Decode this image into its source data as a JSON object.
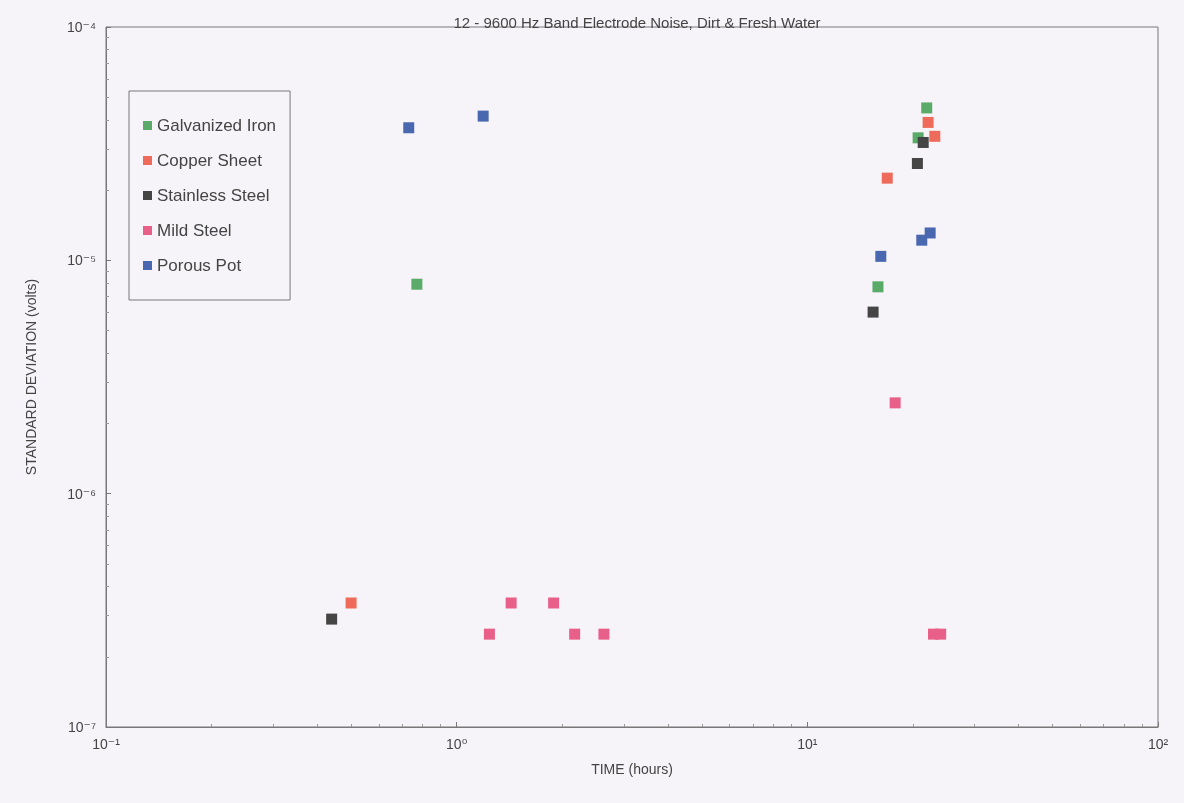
{
  "chart_data": {
    "type": "scatter",
    "title": "12 - 9600 Hz Band Electrode Noise, Dirt & Fresh Water",
    "xlabel": "TIME (hours)",
    "ylabel": "STANDARD DEVIATION (volts)",
    "log": "xy",
    "grid": false,
    "legend": "top left",
    "marker": "square",
    "xlim": [
      0.1,
      100
    ],
    "xticks": [
      {
        "value": 0.1,
        "label": "10⁻¹"
      },
      {
        "value": 1,
        "label": "10⁰"
      },
      {
        "value": 10,
        "label": "10¹"
      },
      {
        "value": 100,
        "label": "10²"
      }
    ],
    "ylim": [
      1e-07,
      0.0001
    ],
    "yticks": [
      {
        "value": 1e-07,
        "label": "10⁻⁷"
      },
      {
        "value": 1e-06,
        "label": "10⁻⁶"
      },
      {
        "value": 1e-05,
        "label": "10⁻⁵"
      },
      {
        "value": 0.0001,
        "label": "10⁻⁴"
      }
    ],
    "series": [
      {
        "name": "Galvanized Iron",
        "color": "#5aaa6a",
        "x": [
          0.77,
          15.9,
          21.9,
          20.7
        ],
        "values": [
          7.9e-06,
          7.7e-06,
          4.5e-05,
          3.35e-05
        ]
      },
      {
        "name": "Copper Sheet",
        "color": "#ee6a5a",
        "x": [
          0.5,
          16.9,
          22.1,
          23.1
        ],
        "values": [
          3.4e-07,
          2.25e-05,
          3.9e-05,
          3.4e-05
        ]
      },
      {
        "name": "Stainless Steel",
        "color": "#454545",
        "x": [
          0.44,
          15.4,
          20.6,
          21.4
        ],
        "values": [
          2.9e-07,
          6e-06,
          2.6e-05,
          3.2e-05
        ]
      },
      {
        "name": "Mild Steel",
        "color": "#e8608a",
        "x": [
          1.24,
          1.43,
          1.89,
          2.17,
          2.63,
          17.8,
          22.9,
          24.0
        ],
        "values": [
          2.5e-07,
          3.4e-07,
          3.4e-07,
          2.5e-07,
          2.5e-07,
          2.45e-06,
          2.5e-07,
          2.5e-07
        ]
      },
      {
        "name": "Porous Pot",
        "color": "#4a68b0",
        "x": [
          0.73,
          1.19,
          16.2,
          21.2,
          22.4
        ],
        "values": [
          3.7e-05,
          4.15e-05,
          1.04e-05,
          1.22e-05,
          1.31e-05
        ]
      }
    ]
  }
}
